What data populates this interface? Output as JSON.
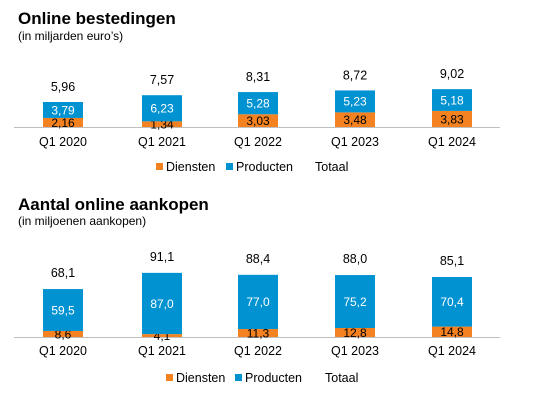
{
  "colors": {
    "diensten": "#F58220",
    "producten": "#0092D1",
    "axis": "#BFBFBF"
  },
  "chart_data": [
    {
      "type": "bar",
      "stacked": true,
      "title": "Online bestedingen",
      "subtitle": "(in miljarden euro’s)",
      "categories": [
        "Q1 2020",
        "Q1 2021",
        "Q1 2022",
        "Q1 2023",
        "Q1 2024"
      ],
      "series": [
        {
          "name": "Diensten",
          "values": [
            2.16,
            1.34,
            3.03,
            3.48,
            3.83
          ],
          "labels": [
            "2,16",
            "1,34",
            "3,03",
            "3,48",
            "3,83"
          ]
        },
        {
          "name": "Producten",
          "values": [
            3.79,
            6.23,
            5.28,
            5.23,
            5.18
          ],
          "labels": [
            "3,79",
            "6,23",
            "5,28",
            "5,23",
            "5,18"
          ]
        }
      ],
      "totals": {
        "name": "Totaal",
        "values": [
          5.96,
          7.57,
          8.31,
          8.72,
          9.02
        ],
        "labels": [
          "5,96",
          "7,57",
          "8,31",
          "8,72",
          "9,02"
        ]
      },
      "legend": [
        "Diensten",
        "Producten",
        "Totaal"
      ],
      "legend_position": "bottom"
    },
    {
      "type": "bar",
      "stacked": true,
      "title": "Aantal online aankopen",
      "subtitle": "(in miljoenen aankopen)",
      "categories": [
        "Q1 2020",
        "Q1 2021",
        "Q1 2022",
        "Q1 2023",
        "Q1 2024"
      ],
      "series": [
        {
          "name": "Diensten",
          "values": [
            8.6,
            4.1,
            11.3,
            12.8,
            14.8
          ],
          "labels": [
            "8,6",
            "4,1",
            "11,3",
            "12,8",
            "14,8"
          ]
        },
        {
          "name": "Producten",
          "values": [
            59.5,
            87.0,
            77.0,
            75.2,
            70.4
          ],
          "labels": [
            "59,5",
            "87,0",
            "77,0",
            "75,2",
            "70,4"
          ]
        }
      ],
      "totals": {
        "name": "Totaal",
        "values": [
          68.1,
          91.1,
          88.4,
          88.0,
          85.1
        ],
        "labels": [
          "68,1",
          "91,1",
          "88,4",
          "88,0",
          "85,1"
        ]
      },
      "legend": [
        "Diensten",
        "Producten",
        "Totaal"
      ],
      "legend_position": "bottom"
    }
  ]
}
